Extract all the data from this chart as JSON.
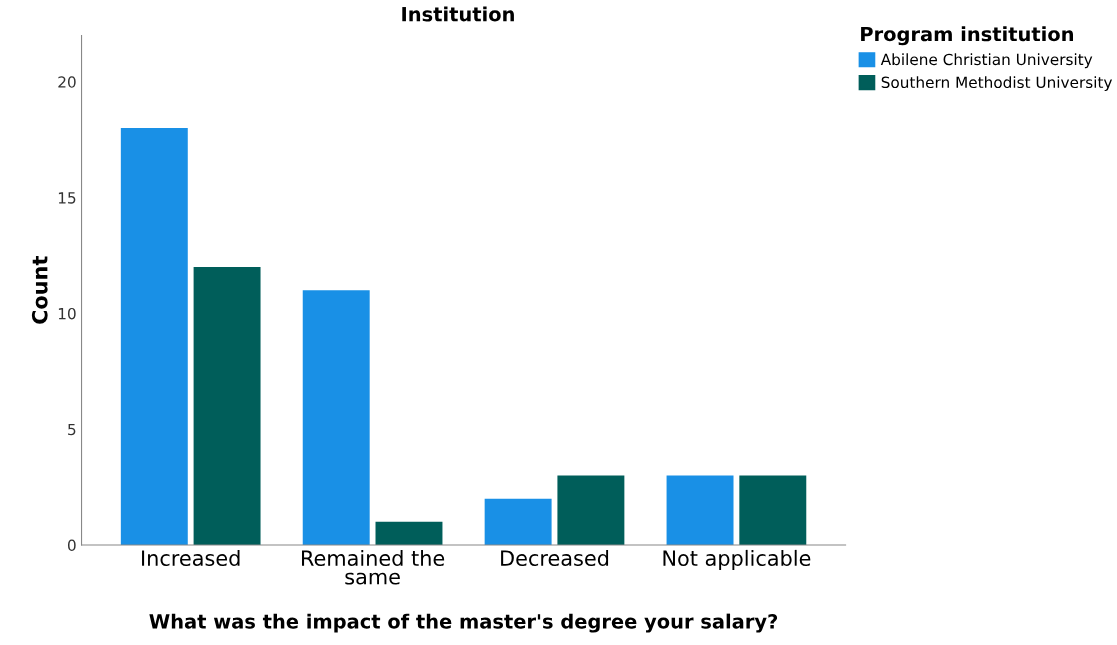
{
  "chart_data": {
    "type": "bar",
    "title": "Institution",
    "xlabel": "What was the impact of the master's degree your salary?",
    "ylabel": "Count",
    "legend_title": "Program institution",
    "categories": [
      "Increased",
      "Remained the\nsame",
      "Decreased",
      "Not applicable"
    ],
    "series": [
      {
        "name": "Abilene Christian University",
        "color": "#1990e6",
        "values": [
          18,
          11,
          2,
          3
        ]
      },
      {
        "name": "Southern Methodist University",
        "color": "#005e5a",
        "values": [
          12,
          1,
          3,
          3
        ]
      }
    ],
    "ylim": [
      0,
      22
    ],
    "yticks": [
      0,
      5,
      10,
      15,
      20
    ],
    "grid": false,
    "legend": "right"
  }
}
